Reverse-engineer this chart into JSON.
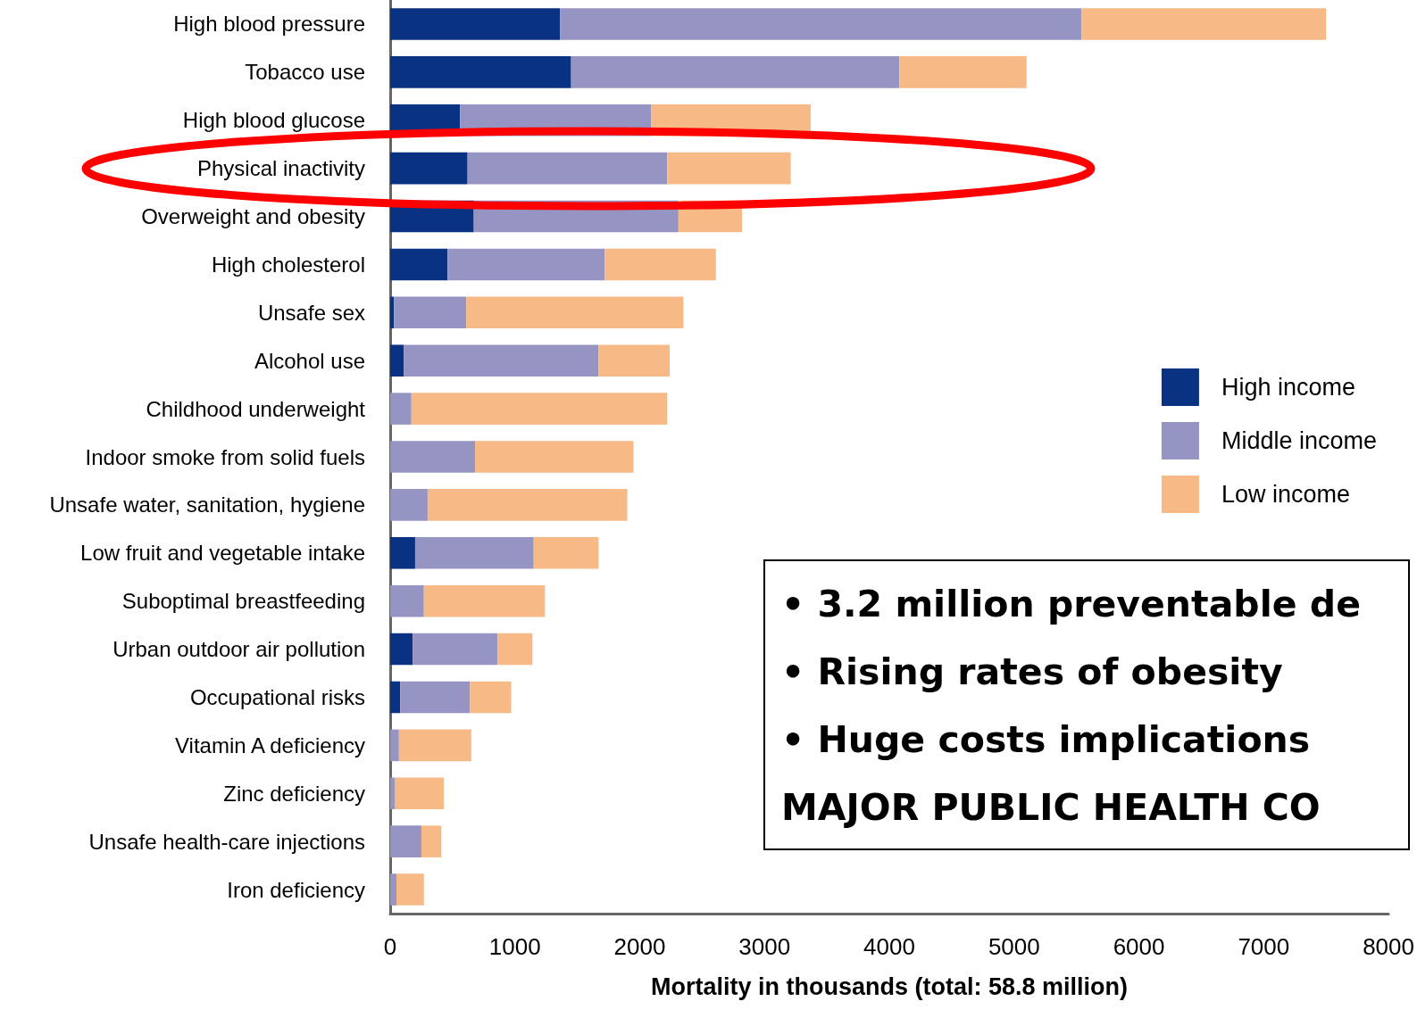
{
  "chart_data": {
    "type": "bar",
    "orientation": "horizontal",
    "stacked": true,
    "categories": [
      "High blood pressure",
      "Tobacco use",
      "High blood glucose",
      "Physical inactivity",
      "Overweight and obesity",
      "High cholesterol",
      "Unsafe sex",
      "Alcohol use",
      "Childhood underweight",
      "Indoor smoke from solid fuels",
      "Unsafe water, sanitation, hygiene",
      "Low fruit and vegetable intake",
      "Suboptimal breastfeeding",
      "Urban outdoor air pollution",
      "Occupational risks",
      "Vitamin A deficiency",
      "Zinc deficiency",
      "Unsafe health-care injections",
      "Iron deficiency"
    ],
    "series": [
      {
        "name": "High income",
        "color": "#0a3282",
        "values": [
          1360,
          1450,
          560,
          620,
          670,
          460,
          30,
          110,
          0,
          0,
          0,
          200,
          0,
          180,
          80,
          0,
          0,
          0,
          0
        ]
      },
      {
        "name": "Middle income",
        "color": "#9694c2",
        "values": [
          4180,
          2630,
          1530,
          1600,
          1640,
          1260,
          580,
          1560,
          170,
          680,
          300,
          950,
          270,
          680,
          560,
          70,
          40,
          250,
          50
        ]
      },
      {
        "name": "Low income",
        "color": "#f7ba87",
        "values": [
          1960,
          1020,
          1280,
          990,
          510,
          890,
          1740,
          570,
          2050,
          1270,
          1600,
          520,
          970,
          280,
          330,
          580,
          390,
          160,
          220
        ]
      }
    ],
    "xlabel": "Mortality in thousands (total: 58.8 million)",
    "xlim": [
      0,
      8000
    ],
    "xticks": [
      0,
      1000,
      2000,
      3000,
      4000,
      5000,
      6000,
      7000,
      8000
    ],
    "grid": false,
    "legend": "right",
    "annotations": [
      "• 3.2 million preventable de",
      "• Rising rates of obesity",
      "• Huge costs implications",
      "MAJOR PUBLIC HEALTH CO"
    ]
  }
}
